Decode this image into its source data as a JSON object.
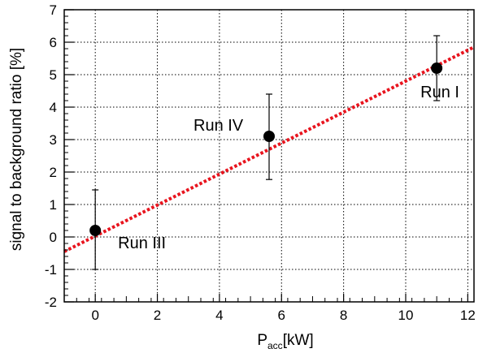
{
  "chart_data": {
    "type": "scatter",
    "title": "",
    "xlabel": "P",
    "xlabel_sub": "acc",
    "xlabel_unit": "[kW]",
    "ylabel": "signal to background ratio [%]",
    "xlim": [
      -1,
      12.2
    ],
    "ylim": [
      -2,
      7
    ],
    "xticks": [
      0,
      2,
      4,
      6,
      8,
      10,
      12
    ],
    "yticks": [
      -2,
      -1,
      0,
      1,
      2,
      3,
      4,
      5,
      6,
      7
    ],
    "xtick_labels": [
      "0",
      "2",
      "4",
      "6",
      "8",
      "10",
      "12"
    ],
    "ytick_labels": [
      "-2",
      "-1",
      "0",
      "1",
      "2",
      "3",
      "4",
      "5",
      "6",
      "7"
    ],
    "grid": true,
    "points": [
      {
        "label": "Run III",
        "x": 0,
        "y": 0.2,
        "err_low": 1.2,
        "err_high": 1.25
      },
      {
        "label": "Run IV",
        "x": 5.6,
        "y": 3.1,
        "err_low": 1.33,
        "err_high": 1.3
      },
      {
        "label": "Run I",
        "x": 11.0,
        "y": 5.2,
        "err_low": 1.0,
        "err_high": 1.0
      }
    ],
    "fit_line": {
      "x": [
        -1,
        12.2
      ],
      "y": [
        -0.45,
        5.85
      ],
      "color": "#e8141e",
      "style": "dotted"
    },
    "colors": {
      "points": "#000000",
      "fit": "#e8141e",
      "grid": "#000000"
    }
  }
}
